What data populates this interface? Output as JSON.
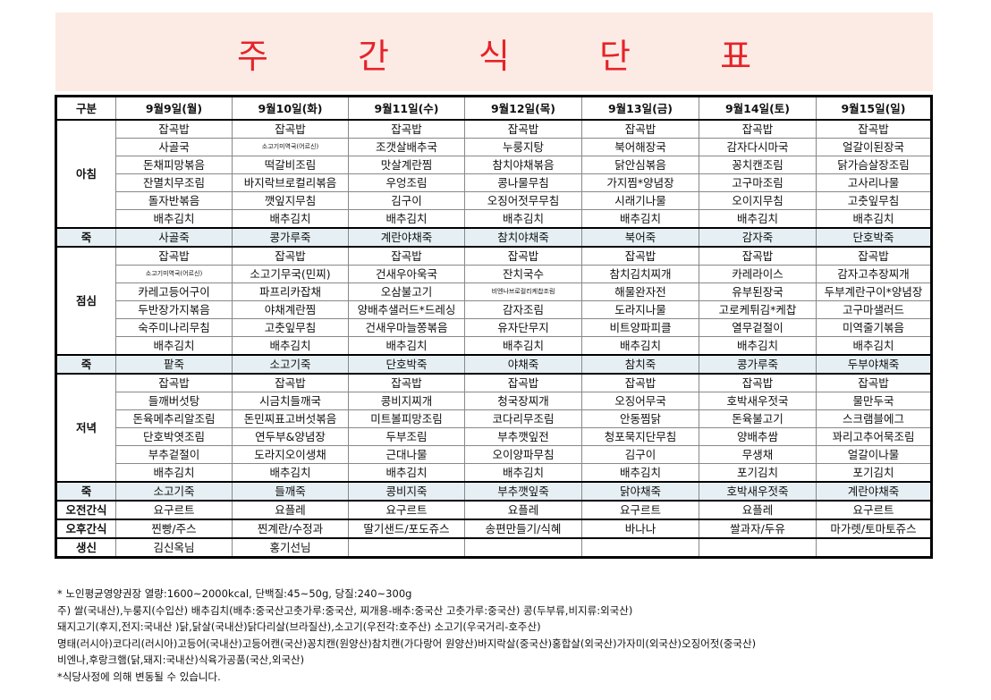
{
  "title": "주 간 식 단 표",
  "header": {
    "category": "구분",
    "days": [
      "9월9일(월)",
      "9월10일(화)",
      "9월11일(수)",
      "9월12일(목)",
      "9월13일(금)",
      "9월14일(토)",
      "9월15일(일)"
    ]
  },
  "breakfast": {
    "label": "아침",
    "rows": [
      [
        "잡곡밥",
        "잡곡밥",
        "잡곡밥",
        "잡곡밥",
        "잡곡밥",
        "잡곡밥",
        "잡곡밥"
      ],
      [
        "사골국",
        "소고기미역국(어르신)",
        "조갯살배추국",
        "누룽지탕",
        "북어해장국",
        "감자다시마국",
        "얼갈이된장국"
      ],
      [
        "돈채피망볶음",
        "떡갈비조림",
        "맛살계란찜",
        "참치야채볶음",
        "닭안심볶음",
        "꽁치캔조림",
        "닭가슴살장조림"
      ],
      [
        "잔멸치무조림",
        "바지락브로컬리볶음",
        "우엉조림",
        "콩나물무침",
        "가지찜*양념장",
        "고구마조림",
        "고사리나물"
      ],
      [
        "돌자반볶음",
        "깻잎지무침",
        "김구이",
        "오징어젓무무침",
        "시래기나물",
        "오이지무침",
        "고춧잎무침"
      ],
      [
        "배추김치",
        "배추김치",
        "배추김치",
        "배추김치",
        "배추김치",
        "배추김치",
        "배추김치"
      ]
    ]
  },
  "juk1": {
    "label": "죽",
    "items": [
      "사골죽",
      "콩가루죽",
      "계란야채죽",
      "참치야채죽",
      "북어죽",
      "감자죽",
      "단호박죽"
    ]
  },
  "lunch": {
    "label": "점심",
    "rows": [
      [
        "잡곡밥",
        "잡곡밥",
        "잡곡밥",
        "잡곡밥",
        "잡곡밥",
        "잡곡밥",
        "잡곡밥"
      ],
      [
        "소고기미역국(어르신)",
        "소고기무국(민찌)",
        "건새우아욱국",
        "잔치국수",
        "참치김치찌개",
        "카레라이스",
        "감자고추장찌개"
      ],
      [
        "카레고등어구이",
        "파프리카잡채",
        "오삼불고기",
        "비엔나브로컬리케찹조림",
        "해물완자전",
        "유부된장국",
        "두부계란구이*양념장"
      ],
      [
        "두반장가지볶음",
        "야채계란찜",
        "양배추샐러드*드레싱",
        "감자조림",
        "도라지나물",
        "고로케튀김*케찹",
        "고구마샐러드"
      ],
      [
        "숙주미나리무침",
        "고춧잎무침",
        "건새우마늘쫑볶음",
        "유자단무지",
        "비트양파피클",
        "열무겉절이",
        "미역줄기볶음"
      ],
      [
        "배추김치",
        "배추김치",
        "배추김치",
        "배추김치",
        "배추김치",
        "배추김치",
        "배추김치"
      ]
    ]
  },
  "juk2": {
    "label": "죽",
    "items": [
      "팥죽",
      "소고기죽",
      "단호박죽",
      "야채죽",
      "참치죽",
      "콩가루죽",
      "두부야채죽"
    ]
  },
  "dinner": {
    "label": "저녁",
    "rows": [
      [
        "잡곡밥",
        "잡곡밥",
        "잡곡밥",
        "잡곡밥",
        "잡곡밥",
        "잡곡밥",
        "잡곡밥"
      ],
      [
        "들깨버섯탕",
        "시금치들깨국",
        "콩비지찌개",
        "청국장찌개",
        "오징어무국",
        "호박새우젓국",
        "물만두국"
      ],
      [
        "돈육메추리알조림",
        "돈민찌표고버섯볶음",
        "미트볼피망조림",
        "코다리무조림",
        "안동찜닭",
        "돈육불고기",
        "스크램블에그"
      ],
      [
        "단호박엿조림",
        "연두부&양념장",
        "두부조림",
        "부추깻잎전",
        "청포묵지단무침",
        "양배추쌈",
        "꽈리고추어묵조림"
      ],
      [
        "부추겉절이",
        "도라지오이생채",
        "근대나물",
        "오이양파무침",
        "김구이",
        "무생채",
        "얼갈이나물"
      ],
      [
        "배추김치",
        "배추김치",
        "배추김치",
        "배추김치",
        "배추김치",
        "포기김치",
        "포기김치"
      ]
    ]
  },
  "juk3": {
    "label": "죽",
    "items": [
      "소고기죽",
      "들깨죽",
      "콩비지죽",
      "부추깻잎죽",
      "닭야채죽",
      "호박새우젓죽",
      "계란야채죽"
    ]
  },
  "am_snack": {
    "label": "오전간식",
    "items": [
      "요구르트",
      "요플레",
      "요구르트",
      "요플레",
      "요구르트",
      "요플레",
      "요구르트"
    ]
  },
  "pm_snack": {
    "label": "오후간식",
    "items": [
      "찐빵/주스",
      "찐계란/수정과",
      "딸기샌드/포도쥬스",
      "송편만들기/식혜",
      "바나나",
      "쌀과자/두유",
      "마가렛/토마토쥬스"
    ]
  },
  "birthday": {
    "label": "생신",
    "items": [
      "김신옥님",
      "홍기선님",
      "",
      "",
      "",
      "",
      ""
    ]
  },
  "notes": [
    "* 노인평균영양권장 열량:1600~2000kcal, 단백질:45~50g, 당질:240~300g",
    "주) 쌀(국내산),누룽지(수입산) 배추김치(배추:중국산고춧가루:중국산, 찌개용-배추:중국산 고춧가루:중국산) 콩(두부류,비지류:외국산)",
    "돼지고기(후지,전지:국내산 )닭,닭살(국내산)닭다리살(브라질산),소고기(우전각:호주산) 소고기(우국거리-호주산)",
    "명태(러시아)코다리(러시아)고등어(국내산)고등어캔(국산)꽁치캔(원양산)참치캔(가다랑어 원양산)바지락살(중국산)홍합살(외국산)가자미(외국산)오징어젓(중국산)",
    "비엔나,후랑크햄(닭,돼지:국내산)식육가공품(국산,외국산)",
    "*식당사정에 의해 변동될 수 있습니다."
  ]
}
